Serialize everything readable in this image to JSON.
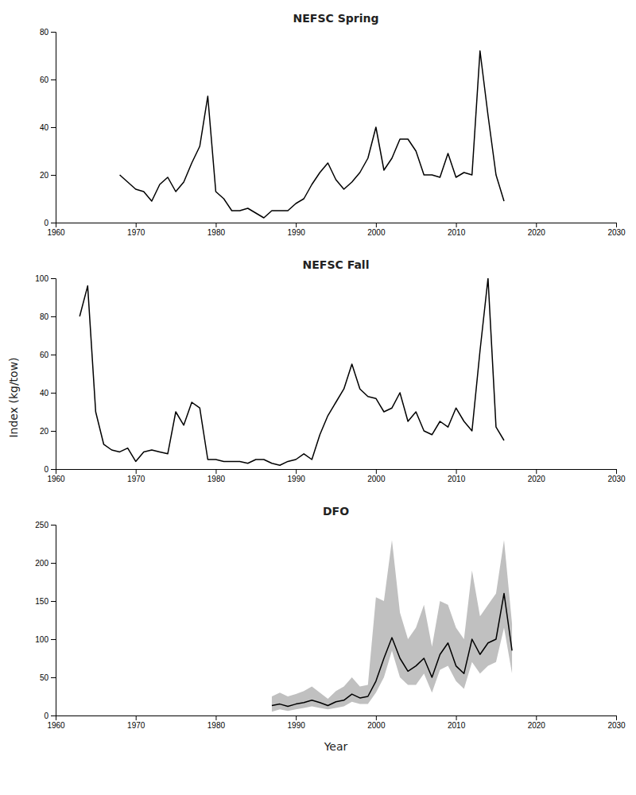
{
  "chart_data": [
    {
      "type": "line",
      "title": "NEFSC Spring",
      "x": [
        1968,
        1969,
        1970,
        1971,
        1972,
        1973,
        1974,
        1975,
        1976,
        1977,
        1978,
        1979,
        1980,
        1981,
        1982,
        1983,
        1984,
        1985,
        1986,
        1987,
        1988,
        1989,
        1990,
        1991,
        1992,
        1993,
        1994,
        1995,
        1996,
        1997,
        1998,
        1999,
        2000,
        2001,
        2002,
        2003,
        2004,
        2005,
        2006,
        2007,
        2008,
        2009,
        2010,
        2011,
        2012,
        2013,
        2014,
        2015,
        2016,
        2017,
        2018,
        2019,
        2020,
        2021
      ],
      "series": [
        {
          "type": "line",
          "color": "#000000",
          "values": [
            20,
            17,
            14,
            13,
            9,
            16,
            19,
            13,
            17,
            25,
            32,
            53,
            13,
            10,
            5,
            5,
            6,
            4,
            2,
            5,
            5,
            5,
            8,
            10,
            16,
            21,
            25,
            18,
            14,
            17,
            21,
            27,
            40,
            22,
            27,
            35,
            35,
            30,
            20,
            20,
            19,
            29,
            19,
            21,
            20,
            72,
            45,
            20,
            9,
            null,
            null,
            null,
            null,
            null
          ]
        }
      ],
      "xlim": [
        1960,
        2030
      ],
      "xticks": [
        1960,
        1970,
        1980,
        1990,
        2000,
        2010,
        2020,
        2030
      ],
      "ylim": [
        0,
        80
      ],
      "yticks": [
        0,
        20,
        40,
        60,
        80
      ]
    },
    {
      "type": "line",
      "title": "NEFSC Fall",
      "ylabel": "Index  (kg/tow)",
      "x": [
        1963,
        1964,
        1965,
        1966,
        1967,
        1968,
        1969,
        1970,
        1971,
        1972,
        1973,
        1974,
        1975,
        1976,
        1977,
        1978,
        1979,
        1980,
        1981,
        1982,
        1983,
        1984,
        1985,
        1986,
        1987,
        1988,
        1989,
        1990,
        1991,
        1992,
        1993,
        1994,
        1995,
        1996,
        1997,
        1998,
        1999,
        2000,
        2001,
        2002,
        2003,
        2004,
        2005,
        2006,
        2007,
        2008,
        2009,
        2010,
        2011,
        2012,
        2013,
        2014,
        2015,
        2016,
        2017,
        2018,
        2019,
        2020
      ],
      "series": [
        {
          "type": "line",
          "color": "#000000",
          "values": [
            80,
            96,
            30,
            13,
            10,
            9,
            11,
            4,
            9,
            10,
            9,
            8,
            30,
            23,
            35,
            32,
            5,
            5,
            4,
            4,
            4,
            3,
            5,
            5,
            3,
            2,
            4,
            5,
            8,
            5,
            18,
            28,
            35,
            42,
            55,
            42,
            38,
            37,
            30,
            32,
            40,
            25,
            30,
            20,
            18,
            25,
            22,
            32,
            25,
            20,
            62,
            100,
            22,
            15,
            null,
            null,
            null,
            null
          ]
        }
      ],
      "xlim": [
        1960,
        2030
      ],
      "xticks": [
        1960,
        1970,
        1980,
        1990,
        2000,
        2010,
        2020,
        2030
      ],
      "ylim": [
        0,
        100
      ],
      "yticks": [
        0,
        20,
        40,
        60,
        80,
        100
      ]
    },
    {
      "type": "line",
      "title": "DFO",
      "xlabel": "Year",
      "x": [
        1987,
        1988,
        1989,
        1990,
        1991,
        1992,
        1993,
        1994,
        1995,
        1996,
        1997,
        1998,
        1999,
        2000,
        2001,
        2002,
        2003,
        2004,
        2005,
        2006,
        2007,
        2008,
        2009,
        2010,
        2011,
        2012,
        2013,
        2014,
        2015,
        2016,
        2017,
        2018,
        2019,
        2020,
        2021,
        2022
      ],
      "series": [
        {
          "type": "band",
          "color": "#c0c0c0",
          "ci_lower": [
            5,
            8,
            6,
            8,
            10,
            12,
            10,
            8,
            10,
            12,
            18,
            15,
            15,
            30,
            50,
            85,
            50,
            40,
            40,
            55,
            30,
            60,
            65,
            45,
            35,
            70,
            55,
            65,
            70,
            115,
            55,
            null,
            null,
            null,
            null,
            null
          ],
          "ci_upper": [
            25,
            30,
            25,
            28,
            32,
            38,
            30,
            22,
            32,
            38,
            50,
            38,
            40,
            155,
            150,
            230,
            135,
            100,
            115,
            145,
            90,
            150,
            145,
            115,
            100,
            190,
            130,
            145,
            160,
            230,
            120,
            null,
            null,
            null,
            null,
            null
          ]
        },
        {
          "type": "line",
          "color": "#000000",
          "values": [
            13,
            15,
            12,
            15,
            17,
            20,
            17,
            13,
            18,
            20,
            28,
            23,
            25,
            45,
            75,
            102,
            75,
            58,
            65,
            75,
            50,
            80,
            95,
            65,
            55,
            100,
            80,
            95,
            100,
            160,
            85,
            null,
            null,
            null,
            null,
            null
          ]
        }
      ],
      "xlim": [
        1960,
        2030
      ],
      "xticks": [
        1960,
        1970,
        1980,
        1990,
        2000,
        2010,
        2020,
        2030
      ],
      "ylim": [
        0,
        250
      ],
      "yticks": [
        0,
        50,
        100,
        150,
        200,
        250
      ]
    }
  ]
}
